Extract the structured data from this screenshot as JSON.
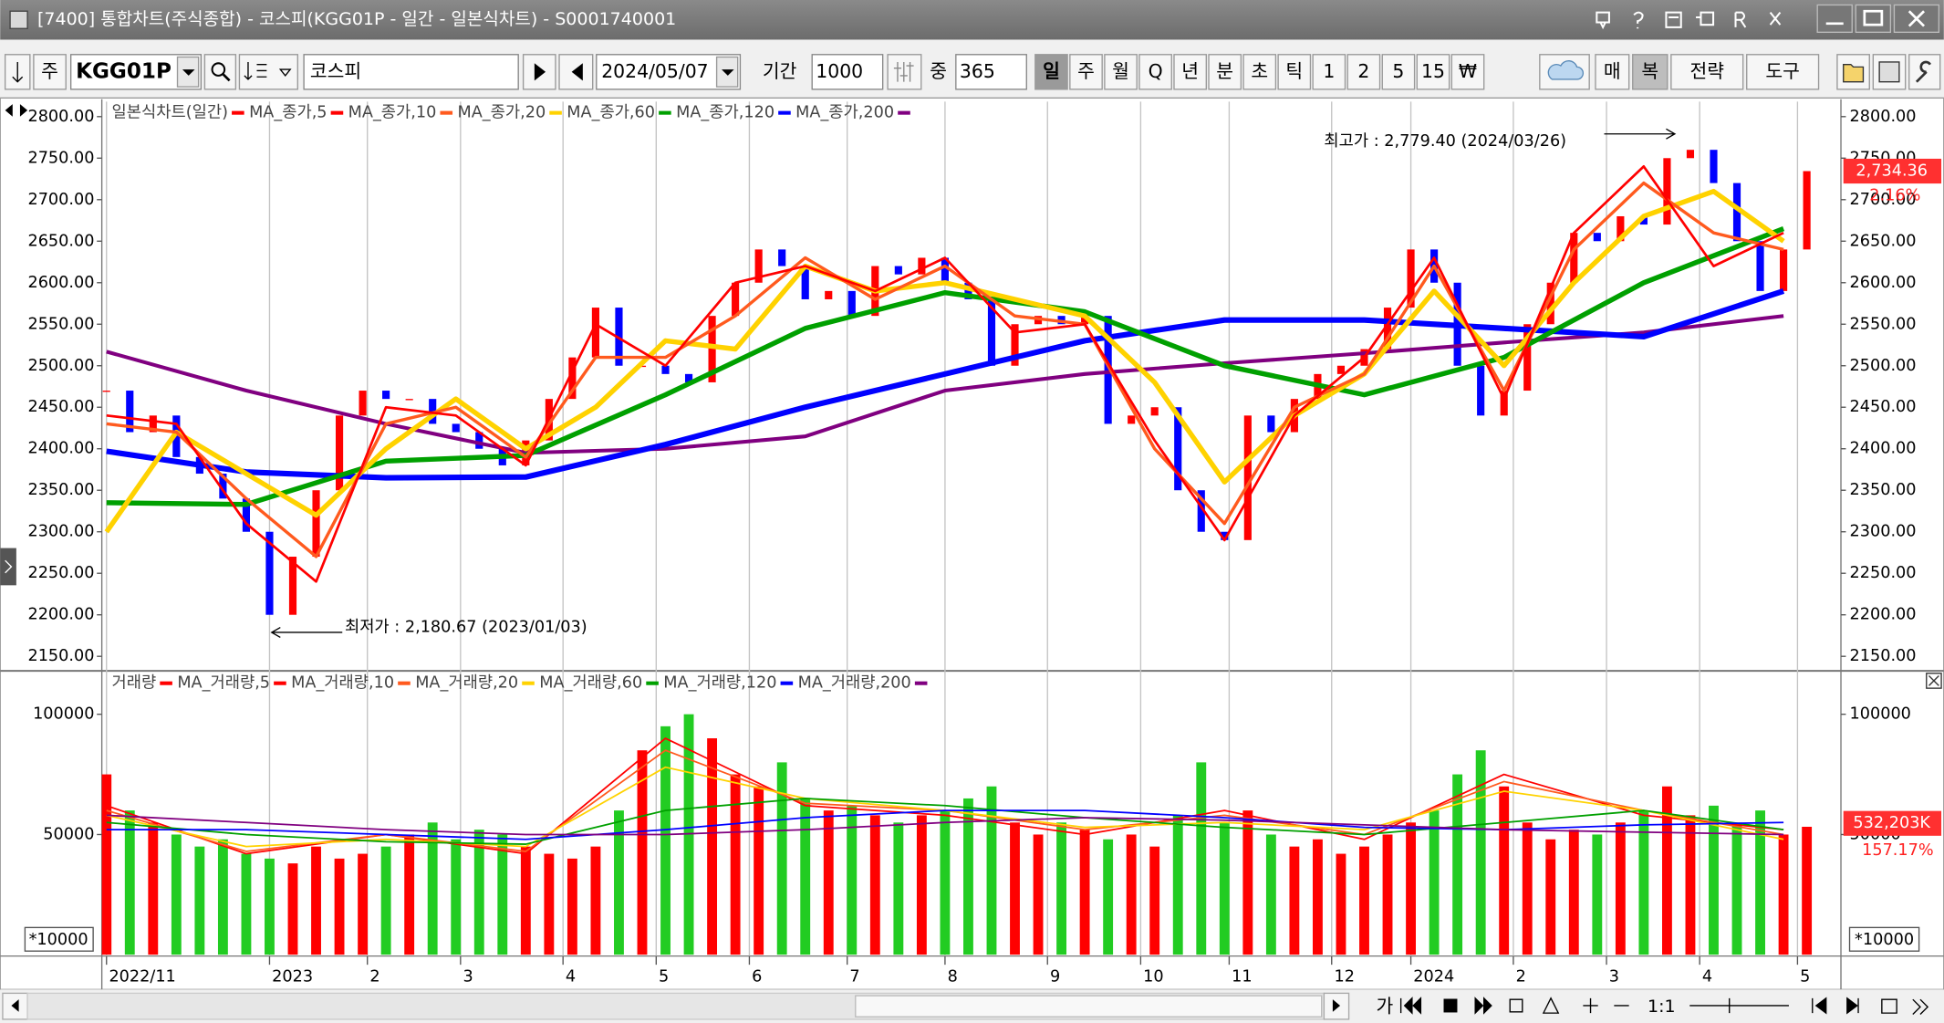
{
  "window": {
    "title": "[7400]   통합차트(주식종합) - 코스피(KGG01P - 일간 - 일본식차트) - S0001740001"
  },
  "toolbar": {
    "type": "주",
    "code": "KGG01P",
    "name": "코스피",
    "date": "2024/05/07",
    "period_label": "기간",
    "period": "1000",
    "count_label": "중",
    "count": "365",
    "buttons": [
      "일",
      "주",
      "월",
      "Q",
      "년",
      "분",
      "초",
      "틱",
      "1",
      "2",
      "5",
      "15",
      "₩"
    ],
    "right_buttons": [
      "매",
      "복",
      "전략",
      "도구"
    ]
  },
  "chart_data": [
    {
      "type": "candlestick",
      "legend_title": "일본식차트(일간)",
      "close": {
        "color": "#ff0000",
        "down_color": "#0000ff",
        "x": [
          0,
          5,
          10,
          15,
          20,
          25,
          30,
          35,
          40,
          45,
          50,
          55,
          60,
          65,
          70,
          75,
          80,
          85,
          90,
          95,
          100,
          105,
          110,
          115,
          120,
          125,
          130,
          135,
          140,
          145,
          150,
          155,
          160,
          165,
          170,
          175,
          180,
          185,
          190,
          195,
          200,
          205,
          210,
          215,
          220,
          225,
          230,
          235,
          240,
          245,
          250,
          255,
          260,
          265,
          270,
          275,
          280,
          285,
          290,
          295,
          300,
          305,
          310,
          315,
          320,
          325,
          330,
          335,
          340,
          345,
          350,
          355,
          360,
          365
        ],
        "values": [
          2470,
          2420,
          2440,
          2390,
          2370,
          2340,
          2300,
          2200,
          2270,
          2350,
          2440,
          2470,
          2460,
          2460,
          2430,
          2420,
          2400,
          2380,
          2410,
          2460,
          2510,
          2570,
          2500,
          2500,
          2490,
          2480,
          2560,
          2600,
          2640,
          2620,
          2580,
          2590,
          2560,
          2620,
          2610,
          2630,
          2600,
          2580,
          2500,
          2550,
          2560,
          2550,
          2560,
          2430,
          2440,
          2450,
          2350,
          2300,
          2290,
          2440,
          2420,
          2460,
          2490,
          2500,
          2520,
          2570,
          2640,
          2600,
          2500,
          2440,
          2470,
          2550,
          2600,
          2660,
          2650,
          2680,
          2670,
          2750,
          2760,
          2720,
          2650,
          2590,
          2640,
          2734.36
        ]
      },
      "series": [
        {
          "name": "MA_종가,5",
          "color": "#ff0000",
          "x": [
            0,
            15,
            30,
            45,
            60,
            75,
            90,
            105,
            120,
            135,
            150,
            165,
            180,
            195,
            210,
            225,
            240,
            255,
            270,
            285,
            300,
            315,
            330,
            345,
            360
          ],
          "values": [
            2440,
            2430,
            2310,
            2240,
            2450,
            2440,
            2380,
            2550,
            2500,
            2600,
            2620,
            2590,
            2630,
            2540,
            2550,
            2410,
            2290,
            2440,
            2510,
            2630,
            2460,
            2660,
            2740,
            2620,
            2660
          ]
        },
        {
          "name": "MA_종가,10",
          "color": "#ff5a1e",
          "x": [
            0,
            15,
            30,
            45,
            60,
            75,
            90,
            105,
            120,
            135,
            150,
            165,
            180,
            195,
            210,
            225,
            240,
            255,
            270,
            285,
            300,
            315,
            330,
            345,
            360
          ],
          "values": [
            2430,
            2420,
            2340,
            2270,
            2430,
            2450,
            2390,
            2510,
            2510,
            2560,
            2630,
            2580,
            2620,
            2560,
            2550,
            2400,
            2310,
            2450,
            2490,
            2620,
            2470,
            2640,
            2720,
            2660,
            2640
          ]
        },
        {
          "name": "MA_종가,20",
          "color": "#ffd200",
          "x": [
            0,
            15,
            30,
            45,
            60,
            75,
            90,
            105,
            120,
            135,
            150,
            165,
            180,
            195,
            210,
            225,
            240,
            255,
            270,
            285,
            300,
            315,
            330,
            345,
            360
          ],
          "values": [
            2300,
            2420,
            2370,
            2320,
            2400,
            2460,
            2400,
            2450,
            2530,
            2520,
            2620,
            2590,
            2600,
            2580,
            2560,
            2480,
            2360,
            2440,
            2490,
            2590,
            2500,
            2600,
            2680,
            2710,
            2650
          ]
        },
        {
          "name": "MA_종가,60",
          "color": "#00a000",
          "x": [
            0,
            30,
            60,
            90,
            120,
            150,
            180,
            210,
            240,
            270,
            300,
            330,
            360
          ],
          "values": [
            2335,
            2333,
            2385,
            2392,
            2465,
            2545,
            2588,
            2565,
            2500,
            2465,
            2510,
            2600,
            2665
          ]
        },
        {
          "name": "MA_종가,120",
          "color": "#0000ff",
          "x": [
            0,
            30,
            60,
            90,
            120,
            150,
            180,
            210,
            240,
            270,
            300,
            330,
            360
          ],
          "values": [
            2397,
            2372,
            2365,
            2366,
            2405,
            2450,
            2490,
            2530,
            2555,
            2555,
            2545,
            2535,
            2590
          ]
        },
        {
          "name": "MA_종가,200",
          "color": "#800080",
          "x": [
            0,
            30,
            60,
            90,
            120,
            150,
            180,
            210,
            240,
            270,
            300,
            330,
            360
          ],
          "values": [
            2517,
            2470,
            2430,
            2395,
            2400,
            2415,
            2470,
            2490,
            2503,
            2515,
            2528,
            2540,
            2560
          ]
        }
      ],
      "xlim": [
        -1,
        367
      ],
      "xticks": [
        {
          "value": 0,
          "label": "2022/11"
        },
        {
          "value": 35,
          "label": "2023"
        },
        {
          "value": 56,
          "label": "2"
        },
        {
          "value": 76,
          "label": "3"
        },
        {
          "value": 98,
          "label": "4"
        },
        {
          "value": 118,
          "label": "5"
        },
        {
          "value": 138,
          "label": "6"
        },
        {
          "value": 159,
          "label": "7"
        },
        {
          "value": 180,
          "label": "8"
        },
        {
          "value": 202,
          "label": "9"
        },
        {
          "value": 222,
          "label": "10"
        },
        {
          "value": 241,
          "label": "11"
        },
        {
          "value": 263,
          "label": "12"
        },
        {
          "value": 280,
          "label": "2024"
        },
        {
          "value": 302,
          "label": "2"
        },
        {
          "value": 322,
          "label": "3"
        },
        {
          "value": 342,
          "label": "4"
        },
        {
          "value": 363,
          "label": "5"
        }
      ],
      "ylim": [
        2137,
        2818
      ],
      "yticks": [
        {
          "value": 2150,
          "label": "2150.00"
        },
        {
          "value": 2200,
          "label": "2200.00"
        },
        {
          "value": 2250,
          "label": "2250.00"
        },
        {
          "value": 2300,
          "label": "2300.00"
        },
        {
          "value": 2350,
          "label": "2350.00"
        },
        {
          "value": 2400,
          "label": "2400.00"
        },
        {
          "value": 2450,
          "label": "2450.00"
        },
        {
          "value": 2500,
          "label": "2500.00"
        },
        {
          "value": 2550,
          "label": "2550.00"
        },
        {
          "value": 2600,
          "label": "2600.00"
        },
        {
          "value": 2650,
          "label": "2650.00"
        },
        {
          "value": 2700,
          "label": "2700.00"
        },
        {
          "value": 2750,
          "label": "2750.00"
        },
        {
          "value": 2800,
          "label": "2800.00"
        }
      ],
      "annotations": [
        {
          "text": "최고가 : 2,779.40 (2024/03/26)",
          "color": "#ff2020"
        },
        {
          "text": "최저가 : 2,180.67 (2023/01/03)",
          "color": "#2020ff"
        }
      ],
      "last_label": "2,734.36",
      "change_label": "2.16%"
    },
    {
      "type": "bar",
      "legend_title": "거래량",
      "color": "#ff0000",
      "up_color": "#ff0000",
      "down_color": "#22cc22",
      "values": [
        75000,
        60000,
        55000,
        50000,
        45000,
        48000,
        42000,
        40000,
        38000,
        45000,
        40000,
        42000,
        45000,
        50000,
        55000,
        48000,
        52000,
        50000,
        45000,
        42000,
        40000,
        45000,
        60000,
        85000,
        95000,
        100000,
        90000,
        75000,
        70000,
        80000,
        65000,
        60000,
        62000,
        58000,
        55000,
        58000,
        60000,
        65000,
        70000,
        55000,
        50000,
        55000,
        52000,
        48000,
        50000,
        45000,
        58000,
        80000,
        55000,
        60000,
        50000,
        45000,
        48000,
        42000,
        45000,
        50000,
        55000,
        60000,
        75000,
        85000,
        70000,
        55000,
        48000,
        52000,
        50000,
        55000,
        60000,
        70000,
        58000,
        62000,
        55000,
        60000,
        50000,
        53220
      ],
      "series": [
        {
          "name": "MA_거래량,5",
          "color": "#ff0000",
          "x": [
            0,
            30,
            60,
            90,
            120,
            150,
            180,
            210,
            240,
            270,
            300,
            330,
            360
          ],
          "values": [
            62000,
            42000,
            50000,
            42000,
            90000,
            62000,
            58000,
            50000,
            60000,
            48000,
            75000,
            58000,
            52000
          ]
        },
        {
          "name": "MA_거래량,10",
          "color": "#ff5a1e",
          "x": [
            0,
            30,
            60,
            90,
            120,
            150,
            180,
            210,
            240,
            270,
            300,
            330,
            360
          ],
          "values": [
            60000,
            43000,
            50000,
            43000,
            85000,
            63000,
            60000,
            52000,
            58000,
            50000,
            72000,
            60000,
            50000
          ]
        },
        {
          "name": "MA_거래량,20",
          "color": "#ffd200",
          "x": [
            0,
            30,
            60,
            90,
            120,
            150,
            180,
            210,
            240,
            270,
            300,
            330,
            360
          ],
          "values": [
            58000,
            45000,
            48000,
            45000,
            78000,
            65000,
            60000,
            53000,
            55000,
            52000,
            68000,
            60000,
            48000
          ]
        },
        {
          "name": "MA_거래량,60",
          "color": "#00a000",
          "x": [
            0,
            30,
            60,
            90,
            120,
            150,
            180,
            210,
            240,
            270,
            300,
            330,
            360
          ],
          "values": [
            55000,
            50000,
            47000,
            46000,
            60000,
            65000,
            62000,
            57000,
            53000,
            50000,
            55000,
            60000,
            52000
          ]
        },
        {
          "name": "MA_거래량,120",
          "color": "#0000ff",
          "x": [
            0,
            30,
            60,
            90,
            120,
            150,
            180,
            210,
            240,
            270,
            300,
            330,
            360
          ],
          "values": [
            52000,
            52000,
            50000,
            48000,
            52000,
            57000,
            60000,
            60000,
            57000,
            53000,
            52000,
            54000,
            55000
          ]
        },
        {
          "name": "MA_거래량,200",
          "color": "#800080",
          "x": [
            0,
            30,
            60,
            90,
            120,
            150,
            180,
            210,
            240,
            270,
            300,
            330,
            360
          ],
          "values": [
            58000,
            55000,
            52000,
            50000,
            50000,
            52000,
            55000,
            57000,
            56000,
            54000,
            52000,
            51000,
            50000
          ]
        }
      ],
      "ylim": [
        0,
        116500
      ],
      "yticks": [
        50000,
        100000
      ],
      "unit_label": "*10000",
      "last_label": "532,203K",
      "ratio_label": "157.17%"
    }
  ],
  "status": {
    "zoom": "1:1"
  }
}
